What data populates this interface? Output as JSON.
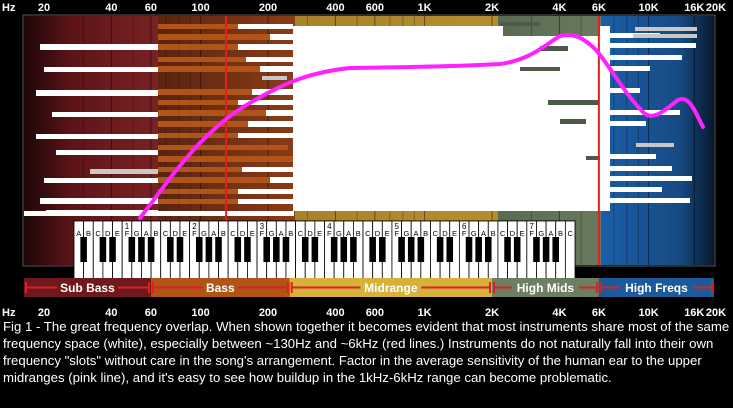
{
  "axis": {
    "unit": "Hz",
    "ticks": [
      {
        "f": 20,
        "label": "20"
      },
      {
        "f": 40,
        "label": "40"
      },
      {
        "f": 60,
        "label": "60"
      },
      {
        "f": 100,
        "label": "100"
      },
      {
        "f": 200,
        "label": "200"
      },
      {
        "f": 400,
        "label": "400"
      },
      {
        "f": 600,
        "label": "600"
      },
      {
        "f": 1000,
        "label": "1K"
      },
      {
        "f": 2000,
        "label": "2K"
      },
      {
        "f": 4000,
        "label": "4K"
      },
      {
        "f": 6000,
        "label": "6K"
      },
      {
        "f": 10000,
        "label": "10K"
      },
      {
        "f": 16000,
        "label": "16K"
      },
      {
        "f": 20000,
        "label": "20K"
      }
    ],
    "range_hz": [
      20,
      20000
    ],
    "scale": "log"
  },
  "regions": [
    {
      "name": "Sub Bass",
      "from_hz": 20,
      "to_hz": 60,
      "color": "#6e1a1c"
    },
    {
      "name": "Bass",
      "from_hz": 60,
      "to_hz": 250,
      "color": "#b05418"
    },
    {
      "name": "Midrange",
      "from_hz": 250,
      "to_hz": 2000,
      "color": "#d6b23a"
    },
    {
      "name": "High Mids",
      "from_hz": 2000,
      "to_hz": 6000,
      "color": "#6e7e62"
    },
    {
      "name": "High Freqs",
      "from_hz": 6000,
      "to_hz": 20000,
      "color": "#1c5a9a"
    }
  ],
  "red_lines_hz": [
    130,
    6000
  ],
  "colors": {
    "overlap": "#ffffff",
    "red_line": "#e02020",
    "sensitivity": "#ff22ff",
    "gray_bar": "#c8c8c8",
    "background": "#000000"
  },
  "piano": {
    "octave_numbers": [
      "1",
      "2",
      "3",
      "4",
      "5",
      "6",
      "7"
    ],
    "white_note_pattern": [
      "C",
      "D",
      "E",
      "F",
      "G",
      "A",
      "B"
    ],
    "leading_notes": [
      "A",
      "B"
    ]
  },
  "caption": "Fig 1 - The great frequency overlap. When shown together it becomes evident that most instruments share most of the same frequency space (white), especially between ~130Hz and ~6kHz (red lines.) Instruments do not naturally fall into their own frequency \"slots\" without care in the song's arrangement. Factor in the average sensitivity of the human ear to the upper midranges (pink line), and it's easy to see how buildup in the 1kHz-6kHz range can become problematic."
}
